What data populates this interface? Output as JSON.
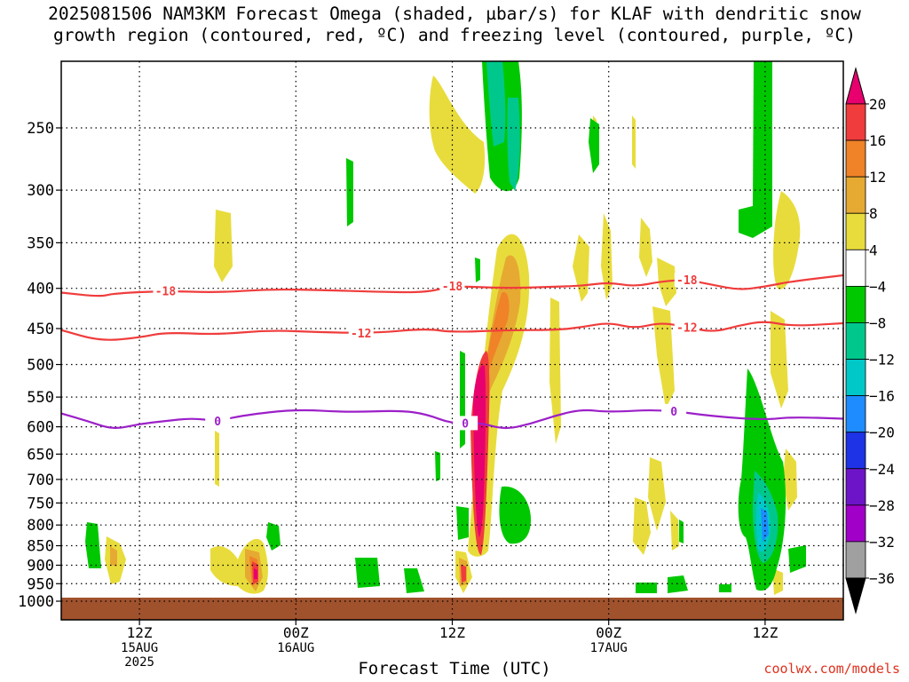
{
  "title_line1": "2025081506 NAM3KM Forecast Omega (shaded, µbar/s) for KLAF with dendritic snow",
  "title_line2": "growth region (contoured, red, ºC) and freezing level (contoured, purple, ºC)",
  "credit": "coolwx.com/models",
  "chart_data": {
    "type": "contour",
    "xlabel": "Forecast Time (UTC)",
    "x_range_hours": [
      6,
      66
    ],
    "x_ticks": [
      {
        "hour": 12,
        "lines": [
          "12Z",
          "15AUG",
          "2025"
        ]
      },
      {
        "hour": 24,
        "lines": [
          "00Z",
          "16AUG"
        ]
      },
      {
        "hour": 36,
        "lines": [
          "12Z",
          ""
        ]
      },
      {
        "hour": 48,
        "lines": [
          "00Z",
          "17AUG"
        ]
      },
      {
        "hour": 60,
        "lines": [
          "12Z",
          ""
        ]
      }
    ],
    "y_scale": "log-pressure",
    "y_range_hpa": [
      1030,
      200
    ],
    "y_ticks": [
      250,
      300,
      350,
      400,
      450,
      500,
      550,
      600,
      650,
      700,
      750,
      800,
      850,
      900,
      950,
      1000
    ],
    "grid": true,
    "colorbar": {
      "levels": [
        "20",
        "16",
        "12",
        "8",
        "4",
        "−4",
        "−8",
        "−12",
        "−16",
        "−20",
        "−24",
        "−28",
        "−32",
        "−36"
      ],
      "colors": [
        "#e8006e",
        "#f03c3c",
        "#f08228",
        "#e6aa32",
        "#e8dc3c",
        "#ffffff",
        "#00c800",
        "#00c88c",
        "#00c8c8",
        "#1e8cff",
        "#1e32e6",
        "#6e14c8",
        "#a000c8",
        "#a0a0a0",
        "#000000"
      ]
    },
    "contours": [
      {
        "label": "-18",
        "color": "#f03c3c",
        "points": [
          [
            6,
            405
          ],
          [
            9,
            410
          ],
          [
            10,
            406
          ],
          [
            14,
            403
          ],
          [
            18,
            405
          ],
          [
            22,
            401
          ],
          [
            26,
            402
          ],
          [
            30,
            404
          ],
          [
            34,
            405
          ],
          [
            36,
            397
          ],
          [
            40,
            400
          ],
          [
            44,
            398
          ],
          [
            46,
            397
          ],
          [
            48,
            393
          ],
          [
            50,
            398
          ],
          [
            52,
            392
          ],
          [
            54,
            390
          ],
          [
            56,
            396
          ],
          [
            58,
            402
          ],
          [
            60,
            398
          ],
          [
            62,
            392
          ],
          [
            66,
            385
          ]
        ]
      },
      {
        "label": "-12",
        "color": "#f03c3c",
        "points": [
          [
            6,
            452
          ],
          [
            9,
            467
          ],
          [
            12,
            462
          ],
          [
            14,
            455
          ],
          [
            18,
            458
          ],
          [
            22,
            452
          ],
          [
            26,
            455
          ],
          [
            30,
            456
          ],
          [
            34,
            450
          ],
          [
            36,
            455
          ],
          [
            40,
            452
          ],
          [
            44,
            452
          ],
          [
            46,
            448
          ],
          [
            48,
            442
          ],
          [
            50,
            450
          ],
          [
            52,
            442
          ],
          [
            54,
            448
          ],
          [
            56,
            455
          ],
          [
            58,
            446
          ],
          [
            60,
            440
          ],
          [
            62,
            447
          ],
          [
            66,
            443
          ]
        ]
      },
      {
        "label": "0",
        "color": "#9c20c8",
        "points": [
          [
            6,
            577
          ],
          [
            8,
            590
          ],
          [
            10,
            605
          ],
          [
            12,
            595
          ],
          [
            14,
            590
          ],
          [
            16,
            585
          ],
          [
            18,
            590
          ],
          [
            20,
            580
          ],
          [
            24,
            570
          ],
          [
            28,
            575
          ],
          [
            32,
            572
          ],
          [
            34,
            578
          ],
          [
            36,
            595
          ],
          [
            38,
            592
          ],
          [
            40,
            605
          ],
          [
            42,
            595
          ],
          [
            44,
            580
          ],
          [
            46,
            570
          ],
          [
            48,
            575
          ],
          [
            52,
            570
          ],
          [
            56,
            582
          ],
          [
            60,
            588
          ],
          [
            62,
            583
          ],
          [
            66,
            586
          ]
        ]
      }
    ],
    "label_positions_hours": {
      "-18": [
        14,
        36,
        54
      ],
      "-12": [
        29,
        54
      ],
      "0": [
        18,
        37,
        53
      ]
    }
  }
}
